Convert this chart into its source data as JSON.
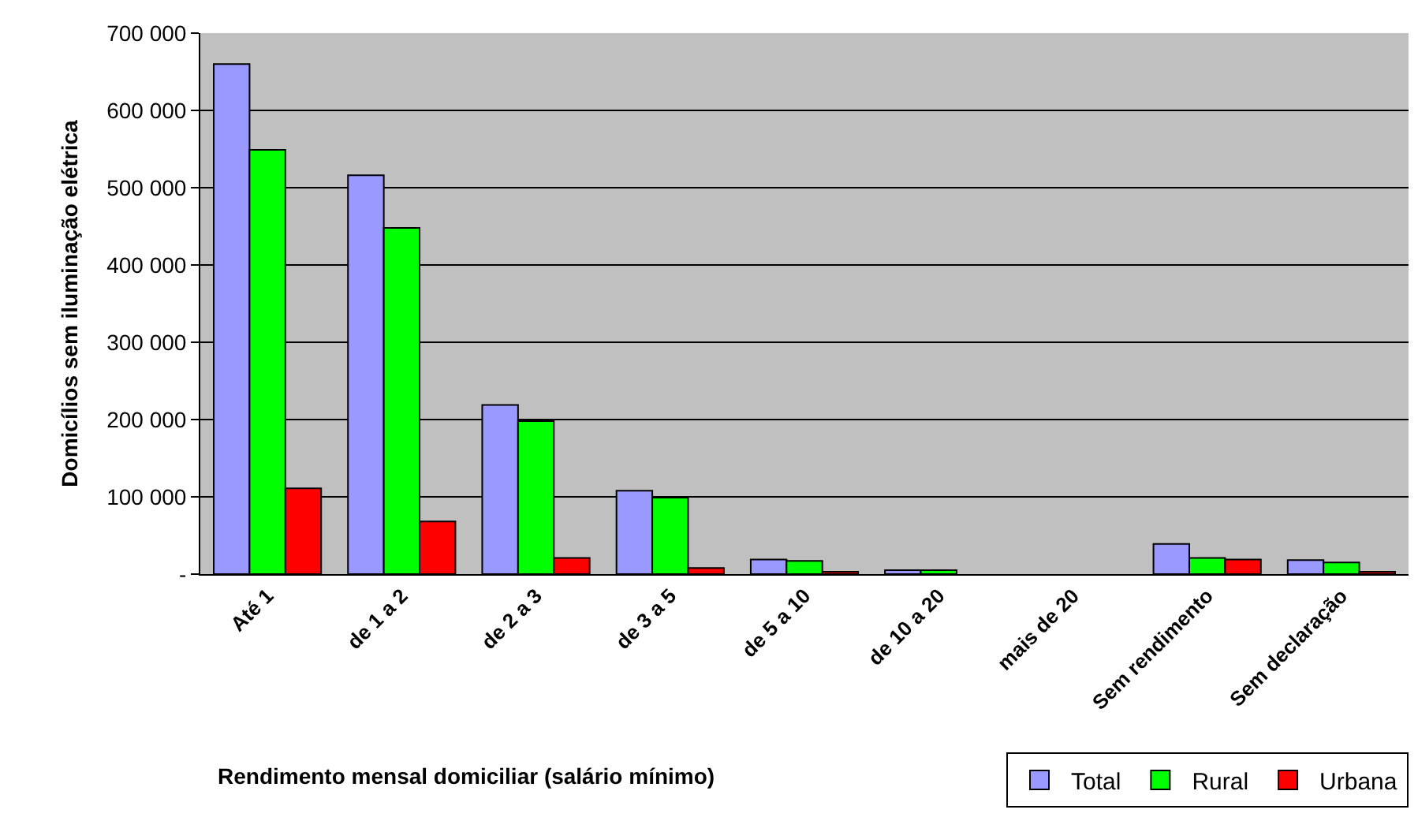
{
  "chart_data": {
    "type": "bar",
    "xlabel": "Rendimento mensal domiciliar (salário mínimo)",
    "ylabel": "Domicílios sem iluminação elétrica",
    "categories": [
      "Até 1",
      "de 1 a 2",
      "de 2 a 3",
      "de 3 a 5",
      "de 5 a 10",
      "de 10 a 20",
      "mais de 20",
      "Sem rendimento",
      "Sem declaração"
    ],
    "series": [
      {
        "name": "Total",
        "color": "#9999ff",
        "values": [
          660000,
          516000,
          219000,
          108000,
          19000,
          5000,
          null,
          39000,
          18000
        ]
      },
      {
        "name": "Rural",
        "color": "#00ff00",
        "values": [
          549000,
          448000,
          198000,
          99000,
          17000,
          5000,
          null,
          21000,
          15000
        ]
      },
      {
        "name": "Urbana",
        "color": "#ff0000",
        "values": [
          111000,
          68000,
          21000,
          8000,
          3000,
          null,
          null,
          19000,
          3000
        ]
      }
    ],
    "ylim": [
      0,
      700000
    ],
    "yticks": [
      {
        "value": 0,
        "label": "-"
      },
      {
        "value": 100000,
        "label": "100 000"
      },
      {
        "value": 200000,
        "label": "200 000"
      },
      {
        "value": 300000,
        "label": "300 000"
      },
      {
        "value": 400000,
        "label": "400 000"
      },
      {
        "value": 500000,
        "label": "500 000"
      },
      {
        "value": 600000,
        "label": "600 000"
      },
      {
        "value": 700000,
        "label": "700 000"
      }
    ],
    "grid": "y",
    "legend": "bottom right"
  }
}
